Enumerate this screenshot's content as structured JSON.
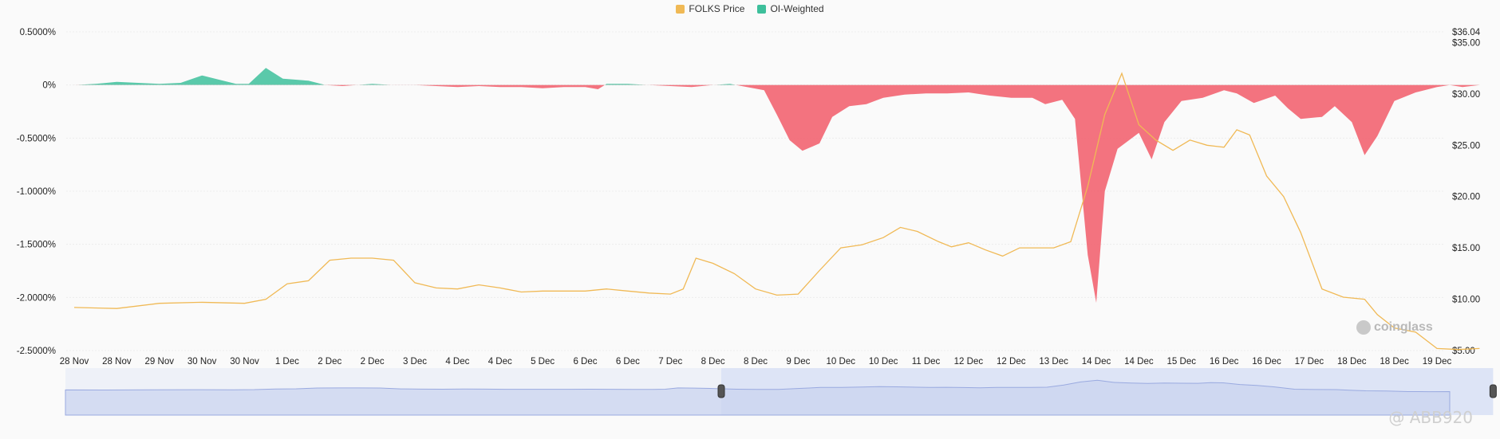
{
  "legend": {
    "price": {
      "label": "FOLKS Price",
      "color": "#f0b955"
    },
    "funding": {
      "label": "OI-Weighted",
      "color": "#3dbf9b"
    }
  },
  "negative_color": "#f26b78",
  "watermark": "@ ABB920",
  "logo_text": "coinglass",
  "chart_data": {
    "type": "area",
    "x_labels": [
      "28 Nov",
      "28 Nov",
      "29 Nov",
      "30 Nov",
      "30 Nov",
      "1 Dec",
      "2 Dec",
      "2 Dec",
      "3 Dec",
      "4 Dec",
      "4 Dec",
      "5 Dec",
      "6 Dec",
      "6 Dec",
      "7 Dec",
      "8 Dec",
      "8 Dec",
      "9 Dec",
      "10 Dec",
      "10 Dec",
      "11 Dec",
      "12 Dec",
      "12 Dec",
      "13 Dec",
      "14 Dec",
      "14 Dec",
      "15 Dec",
      "16 Dec",
      "16 Dec",
      "17 Dec",
      "18 Dec",
      "18 Dec",
      "19 Dec"
    ],
    "left_axis": {
      "ticks": [
        "0.5000%",
        "0%",
        "-0.5000%",
        "-1.0000%",
        "-1.5000%",
        "-2.0000%",
        "-2.5000%"
      ],
      "range": [
        -2.5,
        0.5
      ]
    },
    "right_axis": {
      "ticks": [
        "$36.04",
        "$35.00",
        "$30.00",
        "$25.00",
        "$20.00",
        "$15.00",
        "$10.00",
        "$5.00"
      ],
      "range": [
        5.0,
        36.04
      ]
    },
    "series": [
      {
        "name": "OI-Weighted",
        "axis": "left",
        "points": [
          [
            0,
            0
          ],
          [
            0.5,
            0.01
          ],
          [
            1,
            0.03
          ],
          [
            1.5,
            0.02
          ],
          [
            2,
            0.01
          ],
          [
            2.5,
            0.02
          ],
          [
            3,
            0.09
          ],
          [
            3.4,
            0.05
          ],
          [
            3.8,
            0.01
          ],
          [
            4.1,
            0.01
          ],
          [
            4.5,
            0.16
          ],
          [
            4.9,
            0.06
          ],
          [
            5.5,
            0.04
          ],
          [
            5.9,
            0.0
          ],
          [
            6.3,
            -0.01
          ],
          [
            7,
            0.01
          ],
          [
            7.5,
            0.0
          ],
          [
            8,
            0.0
          ],
          [
            8.5,
            -0.01
          ],
          [
            9,
            -0.02
          ],
          [
            9.5,
            -0.01
          ],
          [
            10,
            -0.02
          ],
          [
            10.5,
            -0.02
          ],
          [
            11,
            -0.03
          ],
          [
            11.5,
            -0.02
          ],
          [
            12,
            -0.02
          ],
          [
            12.3,
            -0.04
          ],
          [
            12.5,
            0.01
          ],
          [
            13,
            0.01
          ],
          [
            13.5,
            0.0
          ],
          [
            14,
            -0.01
          ],
          [
            14.5,
            -0.02
          ],
          [
            15,
            0.0
          ],
          [
            15.4,
            0.01
          ],
          [
            15.8,
            -0.02
          ],
          [
            16.2,
            -0.05
          ],
          [
            16.5,
            -0.28
          ],
          [
            16.8,
            -0.52
          ],
          [
            17.1,
            -0.62
          ],
          [
            17.5,
            -0.55
          ],
          [
            17.8,
            -0.3
          ],
          [
            18.2,
            -0.2
          ],
          [
            18.6,
            -0.18
          ],
          [
            19,
            -0.12
          ],
          [
            19.5,
            -0.09
          ],
          [
            20,
            -0.08
          ],
          [
            20.5,
            -0.08
          ],
          [
            21,
            -0.07
          ],
          [
            21.5,
            -0.1
          ],
          [
            22,
            -0.12
          ],
          [
            22.5,
            -0.12
          ],
          [
            22.8,
            -0.18
          ],
          [
            23.2,
            -0.14
          ],
          [
            23.5,
            -0.32
          ],
          [
            23.8,
            -1.6
          ],
          [
            24.0,
            -2.05
          ],
          [
            24.2,
            -1.0
          ],
          [
            24.5,
            -0.6
          ],
          [
            25.0,
            -0.45
          ],
          [
            25.3,
            -0.7
          ],
          [
            25.6,
            -0.35
          ],
          [
            26.0,
            -0.15
          ],
          [
            26.5,
            -0.12
          ],
          [
            27.0,
            -0.05
          ],
          [
            27.3,
            -0.08
          ],
          [
            27.7,
            -0.17
          ],
          [
            28.2,
            -0.1
          ],
          [
            28.5,
            -0.22
          ],
          [
            28.8,
            -0.32
          ],
          [
            29.3,
            -0.3
          ],
          [
            29.6,
            -0.2
          ],
          [
            30.0,
            -0.35
          ],
          [
            30.3,
            -0.66
          ],
          [
            30.6,
            -0.48
          ],
          [
            31.0,
            -0.15
          ],
          [
            31.5,
            -0.07
          ],
          [
            32.0,
            -0.02
          ],
          [
            32.3,
            0.0
          ],
          [
            32.6,
            -0.02
          ],
          [
            33.0,
            0.0
          ]
        ]
      },
      {
        "name": "FOLKS Price",
        "axis": "right",
        "points": [
          [
            0,
            9.2
          ],
          [
            1,
            9.1
          ],
          [
            2,
            9.6
          ],
          [
            3,
            9.7
          ],
          [
            4,
            9.6
          ],
          [
            4.5,
            10.0
          ],
          [
            5,
            11.5
          ],
          [
            5.5,
            11.8
          ],
          [
            6,
            13.8
          ],
          [
            6.5,
            14.0
          ],
          [
            7,
            14.0
          ],
          [
            7.5,
            13.8
          ],
          [
            8,
            11.6
          ],
          [
            8.5,
            11.1
          ],
          [
            9,
            11.0
          ],
          [
            9.5,
            11.4
          ],
          [
            10,
            11.1
          ],
          [
            10.5,
            10.7
          ],
          [
            11,
            10.8
          ],
          [
            11.5,
            10.8
          ],
          [
            12,
            10.8
          ],
          [
            12.5,
            11.0
          ],
          [
            13,
            10.8
          ],
          [
            13.5,
            10.6
          ],
          [
            14,
            10.5
          ],
          [
            14.3,
            11.0
          ],
          [
            14.6,
            14.0
          ],
          [
            15,
            13.5
          ],
          [
            15.5,
            12.5
          ],
          [
            16,
            11.0
          ],
          [
            16.5,
            10.4
          ],
          [
            17,
            10.5
          ],
          [
            17.5,
            12.8
          ],
          [
            18,
            15.0
          ],
          [
            18.5,
            15.3
          ],
          [
            19,
            16.0
          ],
          [
            19.4,
            17.0
          ],
          [
            19.8,
            16.6
          ],
          [
            20.3,
            15.6
          ],
          [
            20.6,
            15.1
          ],
          [
            21,
            15.5
          ],
          [
            21.4,
            14.8
          ],
          [
            21.8,
            14.2
          ],
          [
            22.2,
            15.0
          ],
          [
            22.6,
            15.0
          ],
          [
            23,
            15.0
          ],
          [
            23.4,
            15.6
          ],
          [
            23.8,
            21.0
          ],
          [
            24.2,
            28.0
          ],
          [
            24.6,
            32.0
          ],
          [
            25.0,
            27.0
          ],
          [
            25.4,
            25.5
          ],
          [
            25.8,
            24.5
          ],
          [
            26.2,
            25.5
          ],
          [
            26.6,
            25.0
          ],
          [
            27.0,
            24.8
          ],
          [
            27.3,
            26.5
          ],
          [
            27.6,
            26.0
          ],
          [
            28.0,
            22.0
          ],
          [
            28.4,
            20.0
          ],
          [
            28.8,
            16.5
          ],
          [
            29.3,
            11.0
          ],
          [
            29.8,
            10.2
          ],
          [
            30.3,
            10.0
          ],
          [
            30.6,
            8.5
          ],
          [
            31.0,
            7.2
          ],
          [
            31.5,
            6.8
          ],
          [
            32.0,
            5.2
          ],
          [
            32.5,
            5.1
          ],
          [
            33.0,
            5.2
          ]
        ]
      }
    ],
    "navigator": {
      "selected_from": 16.0,
      "selected_to": 33.0
    }
  }
}
